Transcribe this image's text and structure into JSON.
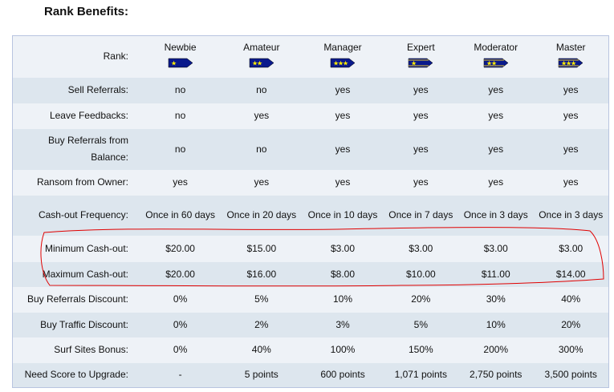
{
  "title": "Rank Benefits:",
  "ranks": [
    {
      "name": "Newbie",
      "stars": 1,
      "striped": false
    },
    {
      "name": "Amateur",
      "stars": 2,
      "striped": false
    },
    {
      "name": "Manager",
      "stars": 3,
      "striped": false
    },
    {
      "name": "Expert",
      "stars": 1,
      "striped": true
    },
    {
      "name": "Moderator",
      "stars": 2,
      "striped": true
    },
    {
      "name": "Master",
      "stars": 3,
      "striped": true
    }
  ],
  "rank_label": "Rank:",
  "rows": [
    {
      "label": "Sell Referrals:",
      "values": [
        "no",
        "no",
        "yes",
        "yes",
        "yes",
        "yes"
      ]
    },
    {
      "label": "Leave Feedbacks:",
      "values": [
        "no",
        "yes",
        "yes",
        "yes",
        "yes",
        "yes"
      ]
    },
    {
      "label": "Buy Referrals from Balance:",
      "values": [
        "no",
        "no",
        "yes",
        "yes",
        "yes",
        "yes"
      ]
    },
    {
      "label": "Ransom from Owner:",
      "values": [
        "yes",
        "yes",
        "yes",
        "yes",
        "yes",
        "yes"
      ]
    },
    {
      "label": "Cash-out Frequency:",
      "values": [
        "Once in 60 days",
        "Once in 20 days",
        "Once in 10 days",
        "Once in 7 days",
        "Once in 3 days",
        "Once in 3 days"
      ]
    },
    {
      "label": "Minimum Cash-out:",
      "values": [
        "$20.00",
        "$15.00",
        "$3.00",
        "$3.00",
        "$3.00",
        "$3.00"
      ]
    },
    {
      "label": "Maximum Cash-out:",
      "values": [
        "$20.00",
        "$16.00",
        "$8.00",
        "$10.00",
        "$11.00",
        "$14.00"
      ]
    },
    {
      "label": "Buy Referrals Discount:",
      "values": [
        "0%",
        "5%",
        "10%",
        "20%",
        "30%",
        "40%"
      ]
    },
    {
      "label": "Buy Traffic Discount:",
      "values": [
        "0%",
        "2%",
        "3%",
        "5%",
        "10%",
        "20%"
      ]
    },
    {
      "label": "Surf Sites Bonus:",
      "values": [
        "0%",
        "40%",
        "100%",
        "150%",
        "200%",
        "300%"
      ]
    },
    {
      "label": "Need Score to Upgrade:",
      "values": [
        "-",
        "5 points",
        "600 points",
        "1,071 points",
        "2,750 points",
        "3,500 points"
      ]
    }
  ],
  "colors": {
    "badge": "#0a1a8c",
    "star": "#ffee00",
    "annotation": "#e00000"
  }
}
